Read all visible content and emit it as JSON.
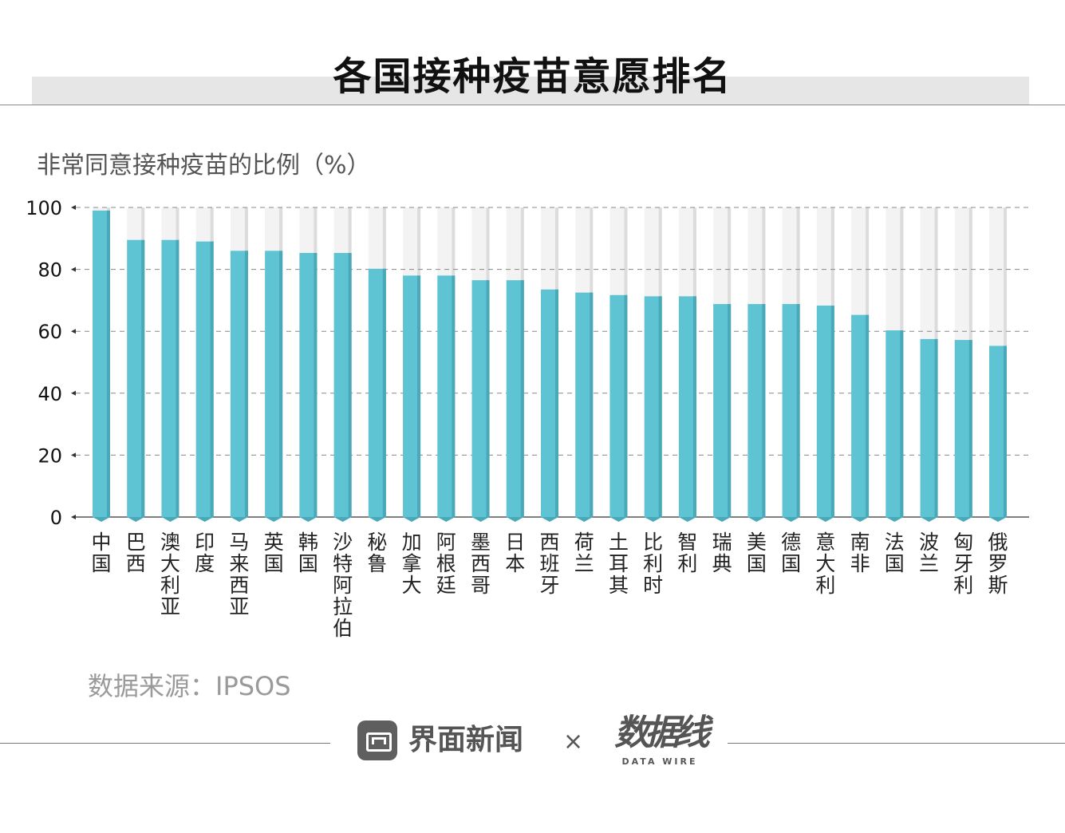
{
  "header": {
    "title": "各国接种疫苗意愿排名"
  },
  "footer": {
    "source": "数据来源：IPSOS",
    "brand_name": "界面新闻",
    "times": "×",
    "partner_logo": "数据线",
    "partner_sub": "DATA WIRE"
  },
  "colors": {
    "bar": "#5ec3d3",
    "bar_side": "#4aa9b9",
    "background_bar": "#f3f3f3"
  },
  "icons": {
    "brand": "jiemian-logo-icon",
    "partner": "data-wire-logo"
  },
  "chart_data": {
    "type": "bar",
    "title": "",
    "ylabel": "非常同意接种疫苗的比例（%）",
    "xlabel": "",
    "ylim": [
      0,
      100
    ],
    "yticks": [
      0,
      20,
      40,
      60,
      80,
      100
    ],
    "grid": true,
    "categories": [
      "中国",
      "巴西",
      "澳大利亚",
      "印度",
      "马来西亚",
      "英国",
      "韩国",
      "沙特阿拉伯",
      "秘鲁",
      "加拿大",
      "阿根廷",
      "墨西哥",
      "日本",
      "西班牙",
      "荷兰",
      "土耳其",
      "比利时",
      "智利",
      "瑞典",
      "美国",
      "德国",
      "意大利",
      "南非",
      "法国",
      "波兰",
      "匈牙利",
      "俄罗斯"
    ],
    "values": [
      99,
      89.5,
      89.5,
      89,
      86,
      86,
      85.3,
      85.3,
      80.2,
      78,
      78,
      76.5,
      76.5,
      73.5,
      72.5,
      71.7,
      71.3,
      71.3,
      68.8,
      68.8,
      68.8,
      68.3,
      65.3,
      60.3,
      57.5,
      57.2,
      55.3
    ]
  }
}
